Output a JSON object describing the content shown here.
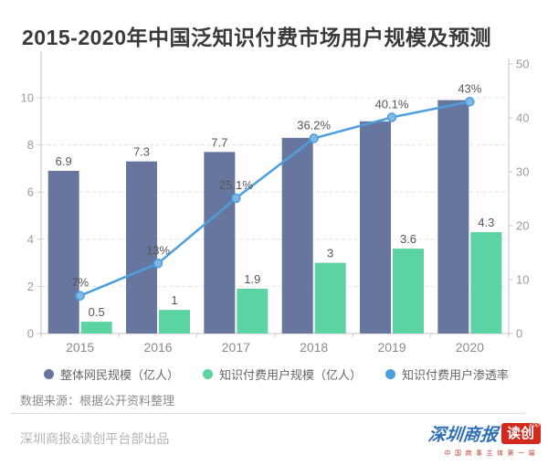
{
  "page": {
    "title": "2015-2020年中国泛知识付费市场用户规模及预测",
    "background": "#ffffff"
  },
  "chart_data": {
    "type": "combo",
    "title": "2015-2020年中国泛知识付费市场用户规模及预测",
    "categories": [
      "2015",
      "2016",
      "2017",
      "2018",
      "2019",
      "2020"
    ],
    "series": [
      {
        "name": "整体网民规模（亿人）",
        "type": "bar",
        "axis": "left",
        "color": "#67769e",
        "values": [
          6.9,
          7.3,
          7.7,
          8.3,
          9.0,
          9.9
        ],
        "data_labels": [
          "6.9",
          "7.3",
          "7.7",
          "",
          "",
          ""
        ]
      },
      {
        "name": "知识付费用户规模（亿人）",
        "type": "bar",
        "axis": "left",
        "color": "#5bd3a2",
        "values": [
          0.5,
          1,
          1.9,
          3,
          3.6,
          4.3
        ],
        "data_labels": [
          "0.5",
          "1",
          "1.9",
          "3",
          "3.6",
          "4.3"
        ]
      },
      {
        "name": "知识付费用户渗透率",
        "type": "line",
        "axis": "right",
        "color": "#4d9edc",
        "marker_fill": "#7fb9e6",
        "values": [
          7,
          13,
          25.1,
          36.2,
          40.1,
          43
        ],
        "data_labels": [
          "7%",
          "13%",
          "25.1%",
          "36.2%",
          "40.1%",
          "43%"
        ]
      }
    ],
    "left_axis": {
      "min": 0,
      "max": 10,
      "ticks": [
        0,
        2,
        4,
        6,
        8,
        10
      ]
    },
    "right_axis": {
      "min": 0,
      "max": 50,
      "ticks": [
        0,
        10,
        20,
        30,
        40,
        50
      ]
    },
    "grid": "horizontal-dashed",
    "legend_position": "bottom",
    "xlabel": "",
    "ylabel_left": "",
    "ylabel_right": ""
  },
  "source_note": "数据来源：根据公开资料整理",
  "footer": {
    "credit": "深圳商报&读创平台部出品",
    "logo": {
      "newspaper": "深圳商报",
      "app_badge": "读创",
      "badge_superscript": "APP",
      "tagline": "中国商事主体第一端"
    }
  }
}
